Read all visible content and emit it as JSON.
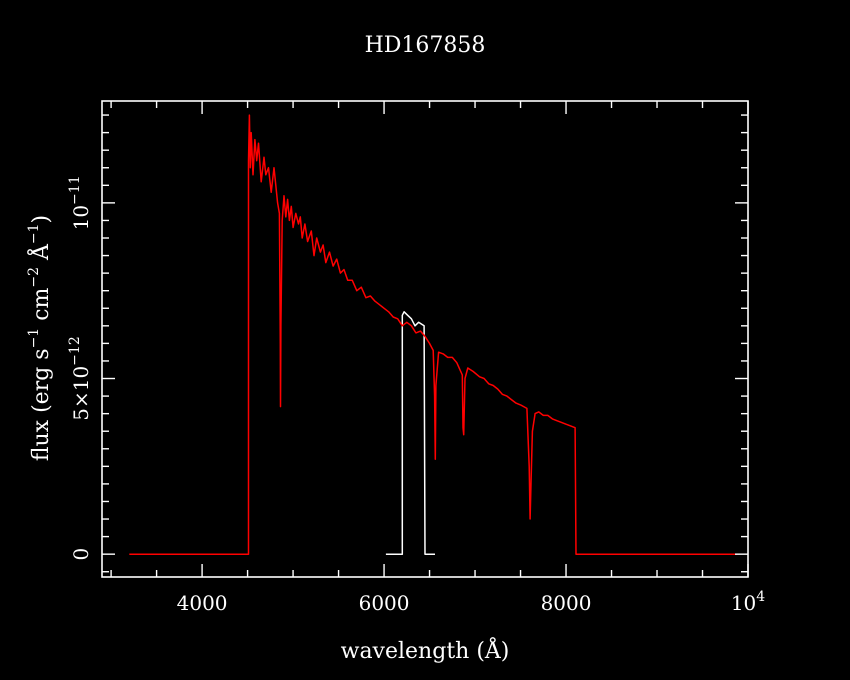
{
  "chart_data": {
    "type": "line",
    "title": "HD167858",
    "xlabel": "wavelength (Å)",
    "ylabel": {
      "prefix": "flux (erg s",
      "exp1": "−1",
      "mid1": " cm",
      "exp2": "−2",
      "mid2": " Å",
      "exp3": "−1",
      "suffix": ")"
    },
    "xlim": [
      2900,
      10000
    ],
    "ylim": [
      -6.5e-13,
      1.29e-11
    ],
    "x_ticks": [
      {
        "value": 4000,
        "label": "4000"
      },
      {
        "value": 6000,
        "label": "6000"
      },
      {
        "value": 8000,
        "label": "8000"
      },
      {
        "value": 10000,
        "label": "10",
        "exp": "4"
      }
    ],
    "y_ticks": [
      {
        "value": 0,
        "label": "0",
        "exp": ""
      },
      {
        "value": 5e-12,
        "label": "5×10",
        "exp": "−12"
      },
      {
        "value": 1e-11,
        "label": "10",
        "exp": "−11"
      }
    ],
    "series": [
      {
        "color": "#ffffff",
        "points": [
          [
            6020,
            0
          ],
          [
            6200,
            0
          ],
          [
            6200,
            6.8e-12
          ],
          [
            6220,
            6.9e-12
          ],
          [
            6260,
            6.8e-12
          ],
          [
            6300,
            6.7e-12
          ],
          [
            6340,
            6.5e-12
          ],
          [
            6380,
            6.6e-12
          ],
          [
            6440,
            6.5e-12
          ],
          [
            6450,
            0
          ],
          [
            6560,
            0
          ]
        ]
      },
      {
        "color": "#ff0000",
        "points": [
          [
            3200,
            0
          ],
          [
            4510,
            0
          ],
          [
            4510,
            1.12e-11
          ],
          [
            4520,
            1.25e-11
          ],
          [
            4530,
            1.1e-11
          ],
          [
            4540,
            1.2e-11
          ],
          [
            4560,
            1.08e-11
          ],
          [
            4580,
            1.18e-11
          ],
          [
            4600,
            1.12e-11
          ],
          [
            4620,
            1.17e-11
          ],
          [
            4650,
            1.06e-11
          ],
          [
            4680,
            1.13e-11
          ],
          [
            4700,
            1.08e-11
          ],
          [
            4730,
            1.1e-11
          ],
          [
            4760,
            1.03e-11
          ],
          [
            4790,
            1.1e-11
          ],
          [
            4810,
            1.05e-11
          ],
          [
            4830,
            1e-11
          ],
          [
            4850,
            9.7e-12
          ],
          [
            4860,
            6e-12
          ],
          [
            4862,
            4.2e-12
          ],
          [
            4866,
            6.5e-12
          ],
          [
            4880,
            9.5e-12
          ],
          [
            4900,
            1.02e-11
          ],
          [
            4920,
            9.6e-12
          ],
          [
            4940,
            1.01e-11
          ],
          [
            4960,
            9.5e-12
          ],
          [
            4980,
            9.9e-12
          ],
          [
            5000,
            9.3e-12
          ],
          [
            5030,
            9.7e-12
          ],
          [
            5060,
            9.4e-12
          ],
          [
            5080,
            9.6e-12
          ],
          [
            5100,
            9e-12
          ],
          [
            5130,
            9.4e-12
          ],
          [
            5160,
            8.9e-12
          ],
          [
            5200,
            9.2e-12
          ],
          [
            5230,
            8.5e-12
          ],
          [
            5260,
            9e-12
          ],
          [
            5300,
            8.6e-12
          ],
          [
            5330,
            8.8e-12
          ],
          [
            5360,
            8.3e-12
          ],
          [
            5400,
            8.6e-12
          ],
          [
            5440,
            8.2e-12
          ],
          [
            5480,
            8.4e-12
          ],
          [
            5520,
            8e-12
          ],
          [
            5560,
            8.1e-12
          ],
          [
            5600,
            7.8e-12
          ],
          [
            5650,
            7.8e-12
          ],
          [
            5700,
            7.5e-12
          ],
          [
            5750,
            7.6e-12
          ],
          [
            5800,
            7.3e-12
          ],
          [
            5850,
            7.35e-12
          ],
          [
            5900,
            7.2e-12
          ],
          [
            5950,
            7.1e-12
          ],
          [
            6000,
            7e-12
          ],
          [
            6050,
            6.9e-12
          ],
          [
            6100,
            6.75e-12
          ],
          [
            6150,
            6.7e-12
          ],
          [
            6200,
            6.5e-12
          ],
          [
            6250,
            6.6e-12
          ],
          [
            6300,
            6.5e-12
          ],
          [
            6350,
            6.3e-12
          ],
          [
            6400,
            6.35e-12
          ],
          [
            6450,
            6.2e-12
          ],
          [
            6500,
            6e-12
          ],
          [
            6540,
            5.8e-12
          ],
          [
            6555,
            4.5e-12
          ],
          [
            6563,
            2.7e-12
          ],
          [
            6570,
            4.8e-12
          ],
          [
            6600,
            5.75e-12
          ],
          [
            6650,
            5.7e-12
          ],
          [
            6700,
            5.6e-12
          ],
          [
            6750,
            5.6e-12
          ],
          [
            6800,
            5.45e-12
          ],
          [
            6860,
            5.1e-12
          ],
          [
            6868,
            3.6e-12
          ],
          [
            6875,
            3.4e-12
          ],
          [
            6890,
            5e-12
          ],
          [
            6920,
            5.3e-12
          ],
          [
            6980,
            5.2e-12
          ],
          [
            7050,
            5.05e-12
          ],
          [
            7100,
            5e-12
          ],
          [
            7150,
            4.85e-12
          ],
          [
            7200,
            4.8e-12
          ],
          [
            7250,
            4.7e-12
          ],
          [
            7300,
            4.55e-12
          ],
          [
            7350,
            4.5e-12
          ],
          [
            7400,
            4.4e-12
          ],
          [
            7450,
            4.3e-12
          ],
          [
            7500,
            4.25e-12
          ],
          [
            7570,
            4.15e-12
          ],
          [
            7595,
            2.5e-12
          ],
          [
            7605,
            1e-12
          ],
          [
            7615,
            2e-12
          ],
          [
            7630,
            3.5e-12
          ],
          [
            7660,
            4e-12
          ],
          [
            7700,
            4.05e-12
          ],
          [
            7750,
            3.95e-12
          ],
          [
            7800,
            3.95e-12
          ],
          [
            7850,
            3.85e-12
          ],
          [
            7900,
            3.8e-12
          ],
          [
            7950,
            3.75e-12
          ],
          [
            8000,
            3.7e-12
          ],
          [
            8050,
            3.65e-12
          ],
          [
            8100,
            3.6e-12
          ],
          [
            8110,
            0
          ],
          [
            9880,
            0
          ]
        ]
      }
    ]
  }
}
